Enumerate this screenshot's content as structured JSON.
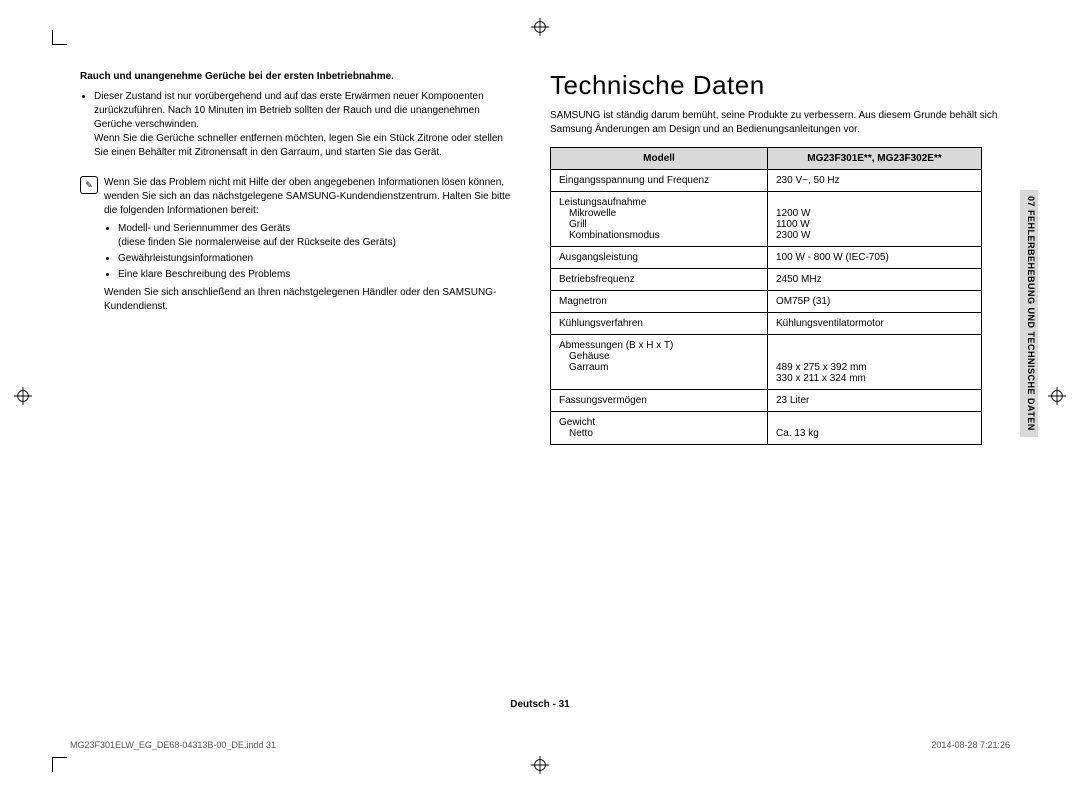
{
  "left": {
    "heading": "Rauch und unangenehme Gerüche bei der ersten Inbetriebnahme.",
    "bullet1": "Dieser Zustand ist nur vorübergehend und auf das erste Erwärmen neuer Komponenten zurückzuführen. Nach 10 Minuten im Betrieb sollten der Rauch und die unangenehmen Gerüche verschwinden.\nWenn Sie die Gerüche schneller entfernen möchten, legen Sie ein Stück Zitrone oder stellen Sie einen Behälter mit Zitronensaft in den Garraum, und starten Sie das Gerät.",
    "tip_p1": "Wenn Sie das Problem nicht mit Hilfe der oben angegebenen Informationen lösen können, wenden Sie sich an das nächstgelegene SAMSUNG-Kundendienstzentrum. Halten Sie bitte die folgenden Informationen bereit:",
    "tip_items": [
      "Modell- und Seriennummer des Geräts\n(diese finden Sie normalerweise auf der Rückseite des Geräts)",
      "Gewährleistungsinformationen",
      "Eine klare Beschreibung des Problems"
    ],
    "tip_p2": "Wenden Sie sich anschließend an Ihren nächstgelegenen Händler oder den SAMSUNG-Kundendienst."
  },
  "right": {
    "title": "Technische Daten",
    "intro": "SAMSUNG ist ständig darum bemüht, seine Produkte zu verbessern. Aus diesem Grunde behält sich Samsung Änderungen am Design und an Bedienungsanleitungen vor.",
    "th1": "Modell",
    "th2": "MG23F301E**, MG23F302E**",
    "rows": [
      {
        "label": "Eingangsspannung und Frequenz",
        "value": "230 V~, 50 Hz"
      },
      {
        "label": "Leistungsaufnahme",
        "sub": [
          "Mikrowelle",
          "Grill",
          "Kombinationsmodus"
        ],
        "valsub": [
          "",
          "1200 W",
          "1100 W",
          "2300 W"
        ]
      },
      {
        "label": "Ausgangsleistung",
        "value": "100 W - 800 W (IEC-705)"
      },
      {
        "label": "Betriebsfrequenz",
        "value": "2450 MHz"
      },
      {
        "label": "Magnetron",
        "value": "OM75P (31)"
      },
      {
        "label": "Kühlungsverfahren",
        "value": "Kühlungsventilatormotor"
      },
      {
        "label": "Abmessungen (B x H x T)",
        "sub": [
          "",
          "Gehäuse",
          "Garraum"
        ],
        "valsub": [
          "",
          "",
          "489 x 275 x 392 mm",
          "330 x 211 x 324 mm"
        ]
      },
      {
        "label": "Fassungsvermögen",
        "value": "23 Liter"
      },
      {
        "label": "Gewicht",
        "sub": [
          "Netto"
        ],
        "valsub": [
          "",
          "Ca. 13 kg"
        ]
      }
    ]
  },
  "sidetab": "07  FEHLERBEHEBUNG UND TECHNISCHE DATEN",
  "footer": {
    "center": "Deutsch - 31",
    "left": "MG23F301ELW_EG_DE68-04313B-00_DE.indd   31",
    "right": "2014-08-28   7:21:26"
  }
}
